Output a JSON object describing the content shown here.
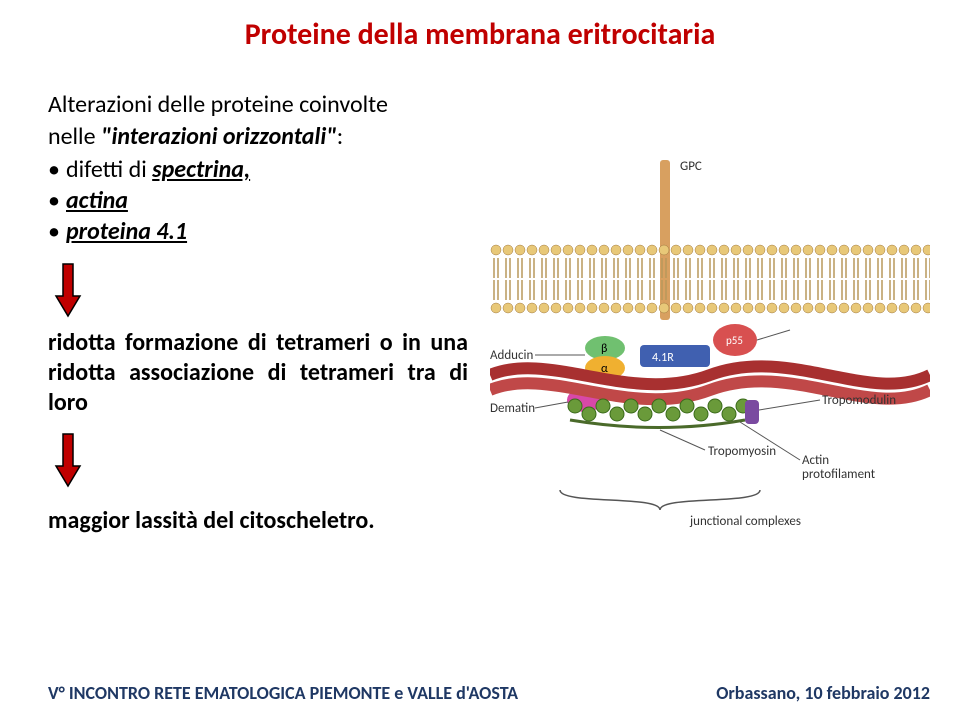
{
  "title": {
    "text": "Proteine della membrana eritrocitaria",
    "color": "#c00000",
    "fontsize": 30
  },
  "intro": {
    "line1_plain": "Alterazioni delle proteine coinvolte",
    "line2_prefix": "nelle ",
    "line2_italic": "\"interazioni orizzontali\"",
    "line2_suffix": ":"
  },
  "bullets": [
    {
      "prefix": "difetti di ",
      "term": "spectrina,",
      "italic": true,
      "underline": true
    },
    {
      "prefix": "",
      "term": "actina",
      "italic": true,
      "underline": true
    },
    {
      "prefix": "",
      "term": "proteina 4.1",
      "italic": true,
      "underline": true
    }
  ],
  "arrows": {
    "fill": "#c00000",
    "stroke": "#000000",
    "width": 28,
    "height": 56
  },
  "para1": "ridotta formazione di tetrameri o in una ridotta associazione di tetrameri tra di loro",
  "para2": "maggior lassità del citoscheletro.",
  "figure": {
    "labels": {
      "gpc": "GPC",
      "p55": "p55",
      "adducin": "Adducin",
      "dematin": "Dematin",
      "r41": "4.1R",
      "beta": "β",
      "alpha": "α",
      "tropomodulin": "Tropomodulin",
      "tropomyosin": "Tropomyosin",
      "actin": "Actin\nprotofilament",
      "junctional": "junctional complexes"
    },
    "colors": {
      "membrane_head": "#e8c878",
      "membrane_tail": "#b8985a",
      "gpc": "#d8a060",
      "p55": "#d85050",
      "r41": "#4060b0",
      "adducin_top": "#70c070",
      "adducin_bot": "#f0b030",
      "dematin": "#d848a8",
      "spectrin1": "#a83030",
      "spectrin2": "#c04848",
      "actin": "#6a9a3a",
      "label": "#333333",
      "brace": "#555555"
    },
    "label_fontsize": 13
  },
  "footer": {
    "left": "V° INCONTRO RETE EMATOLOGICA PIEMONTE e VALLE d'AOSTA",
    "right": "Orbassano, 10 febbraio 2012",
    "color": "#1f3864"
  }
}
